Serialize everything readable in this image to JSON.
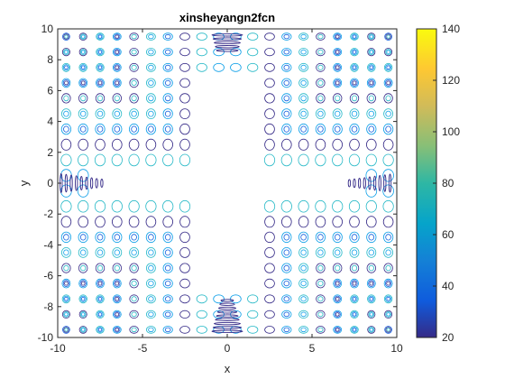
{
  "chart_data": {
    "type": "contour",
    "title": "xinsheyangn2fcn",
    "xlabel": "x",
    "ylabel": "y",
    "xlim": [
      -10,
      10
    ],
    "ylim": [
      -10,
      10
    ],
    "xticks": [
      "-10",
      "-5",
      "0",
      "5",
      "10"
    ],
    "yticks": [
      "-10",
      "-8",
      "-6",
      "-4",
      "-2",
      "0",
      "2",
      "4",
      "6",
      "8",
      "10"
    ],
    "colorbar": {
      "range": [
        20,
        140
      ],
      "ticks": [
        "20",
        "40",
        "60",
        "80",
        "100",
        "120",
        "140"
      ],
      "colormap": "parula"
    },
    "grid": false,
    "colors": {
      "low": "#352a87",
      "mid_low": "#0f5cdd",
      "mid": "#0d9fe8",
      "mid_high": "#27b9c7",
      "high_mid": "#87c96a",
      "high": "#f9fb0e"
    }
  }
}
